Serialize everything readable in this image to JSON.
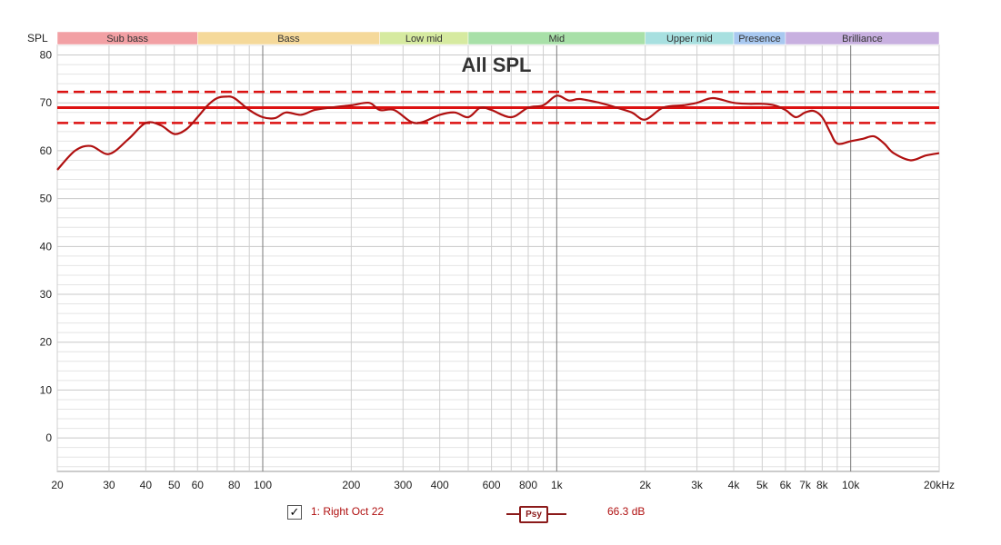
{
  "chart_data": {
    "type": "line",
    "title": "All SPL",
    "ylabel": "SPL",
    "xscale": "log",
    "xlim": [
      20,
      20000
    ],
    "ylim": [
      -7,
      82
    ],
    "y_ticks": [
      0,
      10,
      20,
      30,
      40,
      50,
      60,
      70,
      80
    ],
    "x_ticks": [
      {
        "value": 20,
        "label": "20"
      },
      {
        "value": 30,
        "label": "30"
      },
      {
        "value": 40,
        "label": "40"
      },
      {
        "value": 50,
        "label": "50"
      },
      {
        "value": 60,
        "label": "60"
      },
      {
        "value": 80,
        "label": "80"
      },
      {
        "value": 100,
        "label": "100"
      },
      {
        "value": 200,
        "label": "200"
      },
      {
        "value": 300,
        "label": "300"
      },
      {
        "value": 400,
        "label": "400"
      },
      {
        "value": 600,
        "label": "600"
      },
      {
        "value": 800,
        "label": "800"
      },
      {
        "value": 1000,
        "label": "1k"
      },
      {
        "value": 2000,
        "label": "2k"
      },
      {
        "value": 3000,
        "label": "3k"
      },
      {
        "value": 4000,
        "label": "4k"
      },
      {
        "value": 5000,
        "label": "5k"
      },
      {
        "value": 6000,
        "label": "6k"
      },
      {
        "value": 7000,
        "label": "7k"
      },
      {
        "value": 8000,
        "label": "8k"
      },
      {
        "value": 10000,
        "label": "10k"
      },
      {
        "value": 20000,
        "label": "20kHz"
      }
    ],
    "bands": [
      {
        "label": "Sub bass",
        "from": 20,
        "to": 60,
        "color": "#f2a0a4"
      },
      {
        "label": "Bass",
        "from": 60,
        "to": 250,
        "color": "#f5d99a"
      },
      {
        "label": "Low mid",
        "from": 250,
        "to": 500,
        "color": "#d6eaa0"
      },
      {
        "label": "Mid",
        "from": 500,
        "to": 2000,
        "color": "#a8e0a8"
      },
      {
        "label": "Upper mid",
        "from": 2000,
        "to": 4000,
        "color": "#a8e0e0"
      },
      {
        "label": "Presence",
        "from": 4000,
        "to": 6000,
        "color": "#a8c8f0"
      },
      {
        "label": "Brilliance",
        "from": 6000,
        "to": 20000,
        "color": "#c8b0e0"
      }
    ],
    "reference_lines": [
      {
        "y": 69.0,
        "style": "solid"
      },
      {
        "y": 72.3,
        "style": "dashed"
      },
      {
        "y": 65.8,
        "style": "dashed"
      }
    ],
    "series": [
      {
        "name": "1: Right Oct 22",
        "color": "#b01010",
        "x": [
          20,
          23,
          26,
          30,
          35,
          40,
          45,
          50,
          55,
          60,
          65,
          70,
          75,
          80,
          90,
          100,
          110,
          120,
          135,
          150,
          170,
          200,
          230,
          250,
          280,
          320,
          350,
          400,
          450,
          500,
          550,
          600,
          700,
          800,
          900,
          1000,
          1100,
          1200,
          1400,
          1600,
          1800,
          2000,
          2300,
          2700,
          3000,
          3400,
          4000,
          4500,
          5000,
          5500,
          6000,
          6500,
          7000,
          7500,
          8000,
          8500,
          9000,
          10000,
          11000,
          12000,
          13000,
          14000,
          16000,
          18000,
          20000
        ],
        "y": [
          56.0,
          60.0,
          61.0,
          59.3,
          62.5,
          65.8,
          65.3,
          63.5,
          64.5,
          67.0,
          69.5,
          71.0,
          71.3,
          71.0,
          68.5,
          67.0,
          66.8,
          68.0,
          67.5,
          68.5,
          69.0,
          69.5,
          70.0,
          68.5,
          68.5,
          66.0,
          66.0,
          67.5,
          68.0,
          67.0,
          69.0,
          68.5,
          67.0,
          69.0,
          69.5,
          71.5,
          70.5,
          70.8,
          70.0,
          69.0,
          68.0,
          66.5,
          69.0,
          69.5,
          70.0,
          71.0,
          70.0,
          69.8,
          69.8,
          69.5,
          68.5,
          67.0,
          68.0,
          68.3,
          67.0,
          64.0,
          61.5,
          62.0,
          62.5,
          63.0,
          61.5,
          59.5,
          58.0,
          59.0,
          59.5
        ]
      }
    ]
  },
  "legend": {
    "checkbox_mark": "✓",
    "series_label": "1: Right Oct 22",
    "psy_label": "Psy",
    "level_label": "66.3 dB"
  }
}
